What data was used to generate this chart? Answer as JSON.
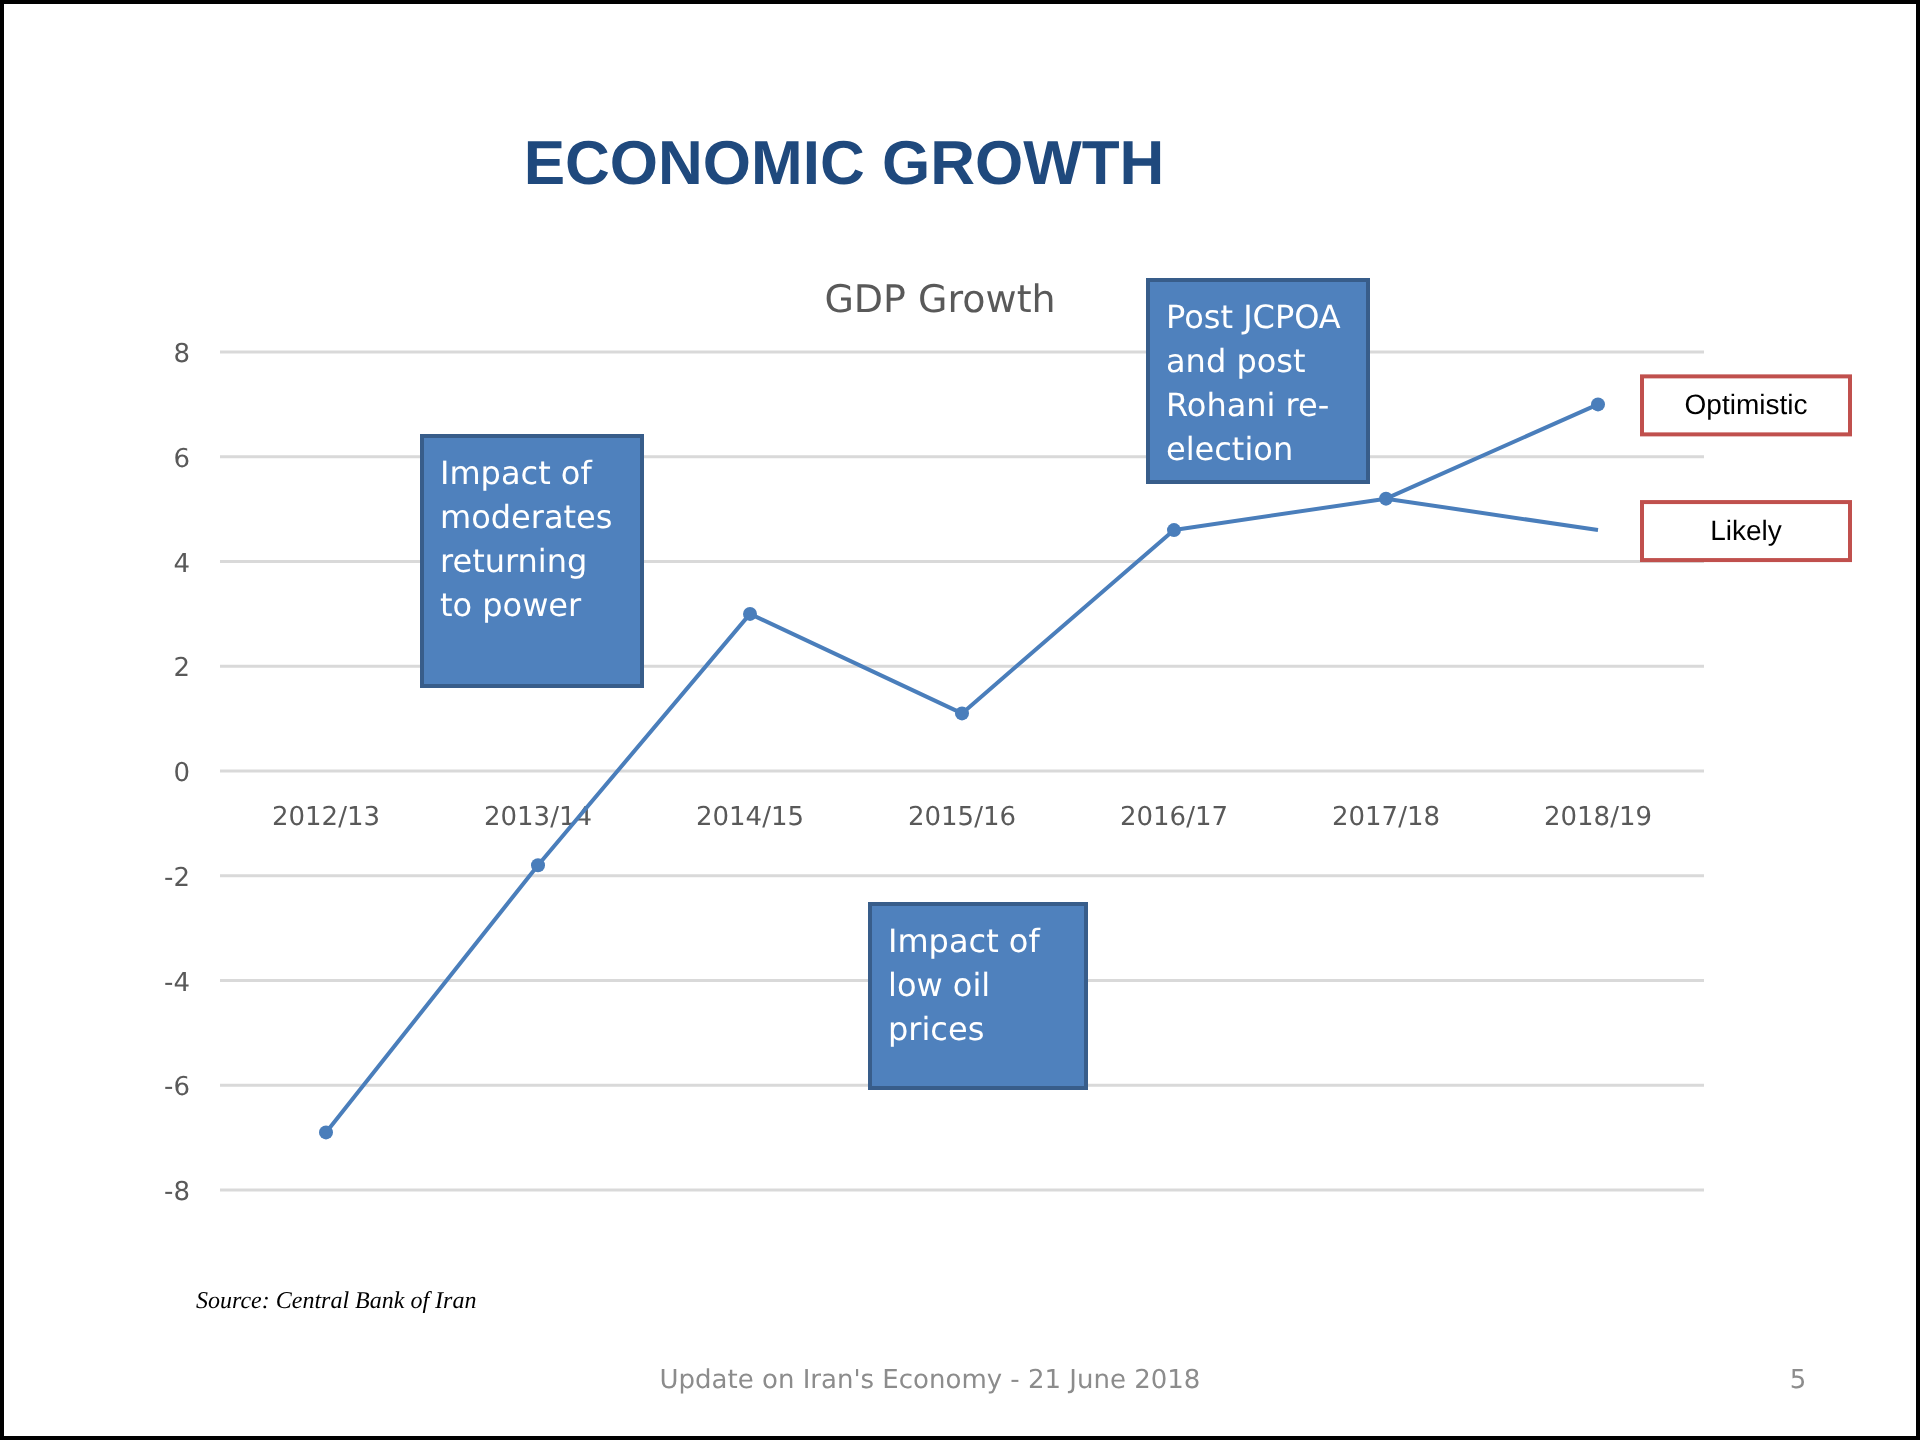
{
  "chart_data": {
    "type": "line",
    "title": "ECONOMIC GROWTH",
    "subtitle": "GDP Growth",
    "categories": [
      "2012/13",
      "2013/14",
      "2014/15",
      "2015/16",
      "2016/17",
      "2017/18",
      "2018/19"
    ],
    "series": [
      {
        "name": "Optimistic",
        "color": "#4a7ebb",
        "marker": "circle",
        "values": [
          -6.9,
          -1.8,
          3.0,
          1.1,
          4.6,
          5.2,
          7.0
        ]
      },
      {
        "name": "Likely",
        "color": "#4a7ebb",
        "marker": "none",
        "values": [
          null,
          null,
          null,
          null,
          null,
          5.2,
          4.6
        ]
      }
    ],
    "ylim": [
      -8,
      8
    ],
    "yticks": [
      -8,
      -6,
      -4,
      -2,
      0,
      2,
      4,
      6,
      8
    ],
    "grid": "y",
    "annotations": [
      "Impact of moderates returning to power",
      "Post JCPOA and post Rohani re-election",
      "Impact of low oil prices",
      "Source: Central Bank of Iran",
      "Update on Iran's Economy - 21 June 2018",
      "5"
    ]
  }
}
